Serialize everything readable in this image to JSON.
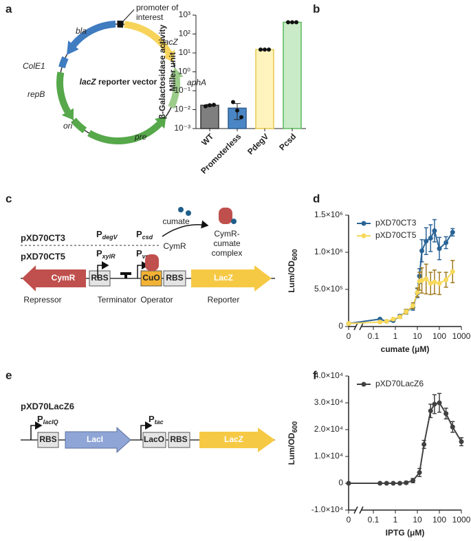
{
  "panel_labels": [
    "a",
    "b",
    "c",
    "d",
    "e",
    "f"
  ],
  "plasmid": {
    "promoter_label": [
      "promoter of",
      "interest"
    ],
    "features": [
      "bla",
      "lacZ",
      "ColE1",
      "aphA",
      "repB",
      "ori",
      "pre"
    ],
    "title": {
      "gene": "lacZ",
      "rest": "reporter vector"
    }
  },
  "cumate_system": {
    "constructs": [
      "pXD70CT3",
      "pXD70CT5"
    ],
    "promoters": [
      {
        "letter": "P",
        "sub": "degV"
      },
      {
        "letter": "P",
        "sub": "csd"
      },
      {
        "letter": "P",
        "sub": "xylR"
      },
      {
        "letter": "P",
        "sub": "veg"
      }
    ],
    "ligand": "cumate",
    "protein": "CymR",
    "complex": [
      "CymR-",
      "cumate",
      "complex"
    ],
    "parts": [
      "CymR",
      "RBS",
      "CuO",
      "RBS",
      "LacZ"
    ],
    "roles": [
      "Repressor",
      "Terminator",
      "Operator",
      "Reporter"
    ]
  },
  "laci_system": {
    "construct": "pXD70LacZ6",
    "promoters": [
      {
        "letter": "P",
        "sub": "lacIQ"
      },
      {
        "letter": "P",
        "sub": "tac"
      }
    ],
    "parts": [
      "RBS",
      "LacI",
      "LacO",
      "RBS",
      "LacZ"
    ]
  },
  "chart_data": [
    {
      "type": "bar",
      "ylabel": [
        "β-Galactosidase activity",
        "Miller unit"
      ],
      "categories": [
        "WT",
        "Promoterless",
        "PdegV",
        "Pcsd"
      ],
      "values": [
        0.017,
        0.012,
        15,
        420
      ],
      "errors": [
        0.002,
        0.009,
        0.5,
        15
      ],
      "points": [
        [
          0.015,
          0.017,
          0.018
        ],
        [
          0.025,
          0.009,
          0.004
        ],
        [
          15,
          15,
          15
        ],
        [
          420,
          420,
          420
        ]
      ],
      "colors": [
        "#7f7f7f",
        "#4a86c5",
        "#fff3bd",
        "#c9ebc7"
      ],
      "edge_colors": [
        "#333333",
        "#2d5d8f",
        "#e8c94a",
        "#5cb85c"
      ],
      "yscale": "log",
      "ylim": [
        0.001,
        1000
      ],
      "yticks": [
        {
          "value": 0.001,
          "label": "10⁻³"
        },
        {
          "value": 0.01,
          "label": "10⁻²"
        },
        {
          "value": 0.1,
          "label": "10⁻¹"
        },
        {
          "value": 1,
          "label": "10⁰"
        },
        {
          "value": 10,
          "label": "10¹"
        },
        {
          "value": 100,
          "label": "10²"
        },
        {
          "value": 1000,
          "label": "10³"
        }
      ]
    },
    {
      "type": "line",
      "xlabel": "cumate (μM)",
      "ylabel": {
        "text": "Lum/OD",
        "sub": "600"
      },
      "x": [
        0,
        0.2,
        0.4,
        0.8,
        1.6,
        3.1,
        6.3,
        10,
        12.5,
        16,
        25,
        40,
        60,
        100,
        200,
        400
      ],
      "series": [
        {
          "name": "pXD70CT3",
          "color": "#2a6496",
          "values": [
            40000,
            100000,
            70000,
            80000,
            140000,
            200000,
            260000,
            450000,
            680000,
            1020000,
            1150000,
            1190000,
            1290000,
            1050000,
            1130000,
            1270000
          ],
          "errors": [
            10000,
            10000,
            10000,
            10000,
            20000,
            30000,
            40000,
            60000,
            100000,
            150000,
            180000,
            180000,
            150000,
            150000,
            80000,
            50000
          ]
        },
        {
          "name": "pXD70CT5",
          "color": "#f7d85a",
          "values": [
            40000,
            60000,
            70000,
            100000,
            130000,
            200000,
            280000,
            460000,
            610000,
            620000,
            640000,
            580000,
            600000,
            580000,
            630000,
            740000
          ],
          "errors": [
            10000,
            10000,
            10000,
            10000,
            20000,
            30000,
            40000,
            60000,
            120000,
            170000,
            200000,
            150000,
            160000,
            150000,
            100000,
            150000
          ]
        }
      ],
      "xscale": "log",
      "axis_break": true,
      "xlim": [
        0,
        1000
      ],
      "xticks": [
        0,
        0.1,
        1,
        10,
        100,
        1000
      ],
      "ylim": [
        0,
        1500000
      ],
      "yticks": [
        0,
        {
          "value": 500000,
          "label": "5.0×10⁵"
        },
        {
          "value": 1000000,
          "label": "1.0×10⁶"
        },
        {
          "value": 1500000,
          "label": "1.5×10⁶"
        }
      ],
      "legend": "upper left"
    },
    {
      "type": "line",
      "xlabel": "IPTG (μM)",
      "ylabel": {
        "text": "Lum/OD",
        "sub": "600"
      },
      "x": [
        0,
        0.2,
        0.4,
        0.8,
        1.6,
        3.1,
        6.3,
        12.5,
        20,
        40,
        60,
        100,
        200,
        400,
        1000
      ],
      "series": [
        {
          "name": "pXD70LacZ6",
          "color": "#404040",
          "values": [
            0,
            0,
            0,
            0,
            0,
            200,
            1000,
            4000,
            14500,
            27000,
            29500,
            30000,
            26000,
            21000,
            15500
          ],
          "errors": [
            300,
            300,
            300,
            300,
            300,
            500,
            800,
            1500,
            1500,
            2500,
            3500,
            3500,
            2000,
            2000,
            1500
          ]
        }
      ],
      "xscale": "log",
      "axis_break": true,
      "xlim": [
        0,
        1000
      ],
      "xticks": [
        0,
        0.1,
        1,
        10,
        100,
        1000
      ],
      "ylim": [
        -10000,
        40000
      ],
      "yticks": [
        {
          "value": -10000,
          "label": "-1.0×10⁴"
        },
        0,
        {
          "value": 10000,
          "label": "1.0×10⁴"
        },
        {
          "value": 20000,
          "label": "2.0×10⁴"
        },
        {
          "value": 30000,
          "label": "3.0×10⁴"
        },
        {
          "value": 40000,
          "label": "4.0×10⁴"
        }
      ],
      "legend": "upper left"
    }
  ]
}
